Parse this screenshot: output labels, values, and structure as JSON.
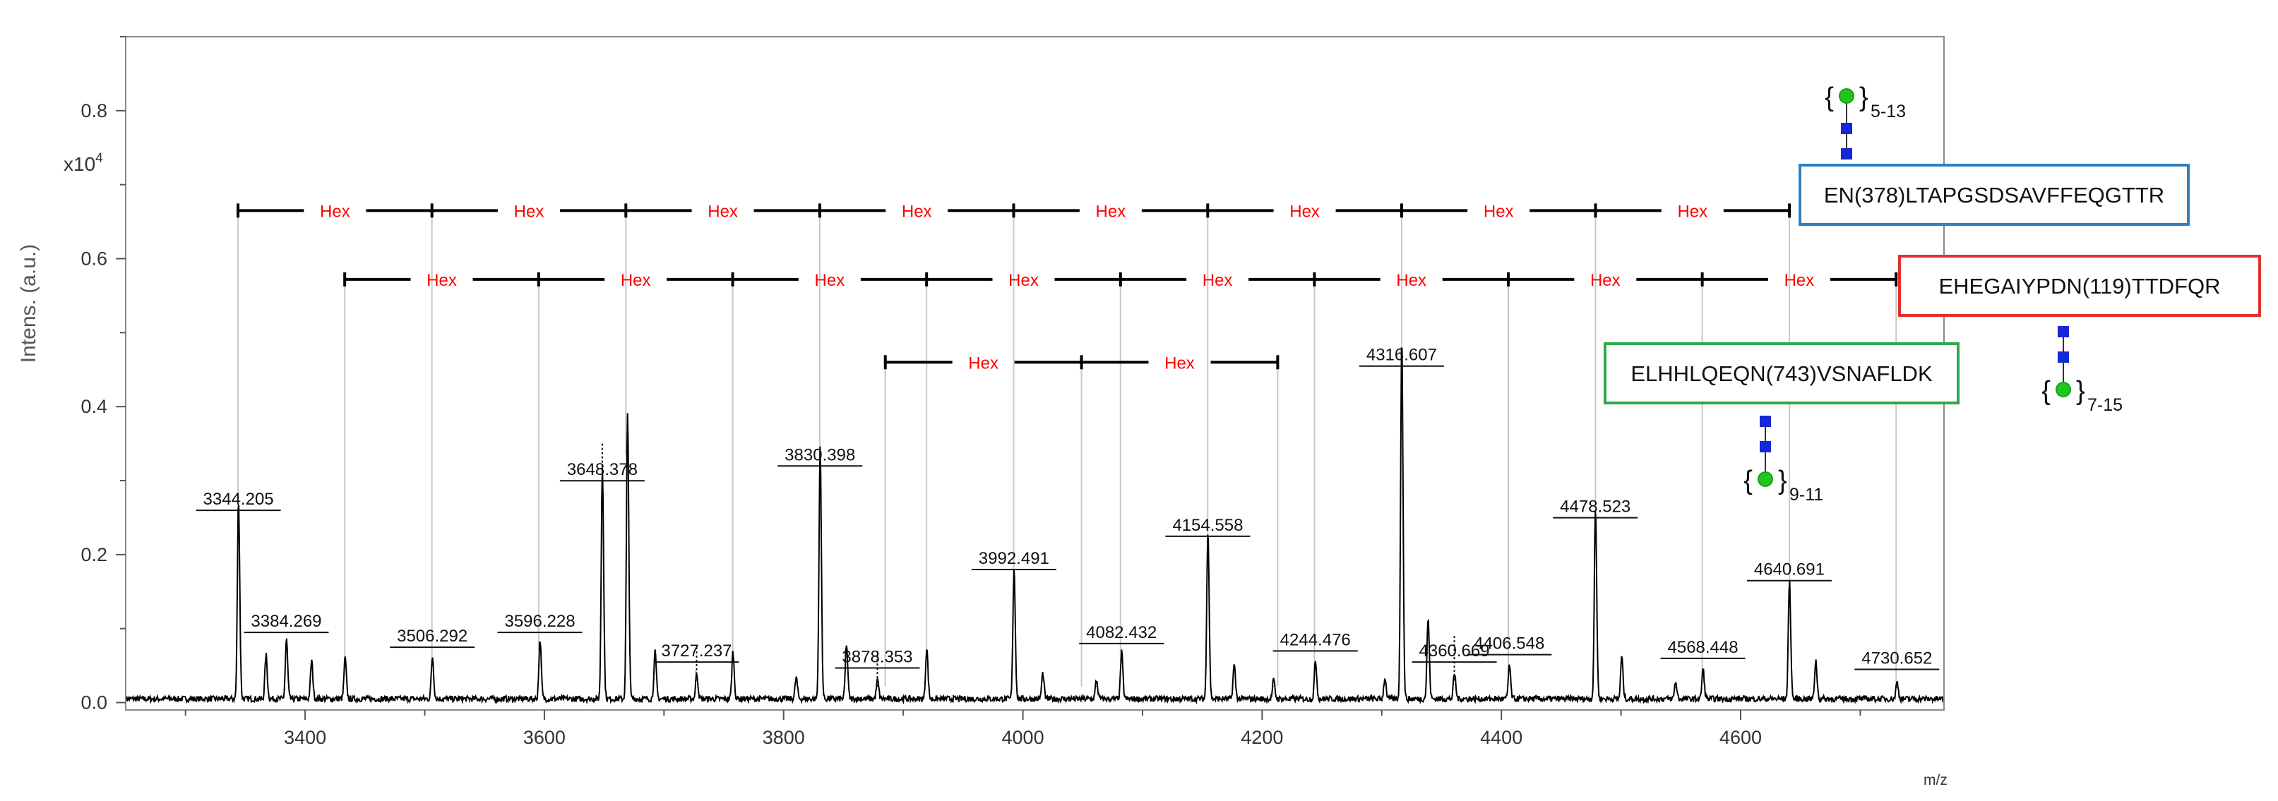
{
  "chart_data": {
    "type": "line",
    "title": "",
    "xlabel": "m/z",
    "ylabel": "Intens. (a.u.)",
    "y_multiplier": "x10",
    "y_multiplier_exp": "4",
    "xlim": [
      3250,
      4770
    ],
    "ylim": [
      -0.01,
      0.9
    ],
    "xticks": [
      3400,
      3600,
      3800,
      4000,
      4200,
      4400,
      4600
    ],
    "yticks": [
      0.0,
      0.2,
      0.4,
      0.6,
      0.8
    ],
    "ytick_labels": [
      "0.0",
      "0.2",
      "0.4",
      "0.6",
      "0.8"
    ],
    "grid": false,
    "series": [
      {
        "baseline": 0.005,
        "peaks": [
          {
            "x": 3344.205,
            "y": 0.235,
            "label": "3344.205"
          },
          {
            "x": 3367.2,
            "y": 0.052
          },
          {
            "x": 3384.269,
            "y": 0.07,
            "label": "3384.269"
          },
          {
            "x": 3405.3,
            "y": 0.045
          },
          {
            "x": 3433.3,
            "y": 0.048
          },
          {
            "x": 3506.292,
            "y": 0.05,
            "label": "3506.292"
          },
          {
            "x": 3596.228,
            "y": 0.07,
            "label": "3596.228"
          },
          {
            "x": 3648.378,
            "y": 0.275,
            "label": "3648.378"
          },
          {
            "x": 3669.4,
            "y": 0.335
          },
          {
            "x": 3692.4,
            "y": 0.055
          },
          {
            "x": 3727.237,
            "y": 0.03,
            "label": "3727.237"
          },
          {
            "x": 3757.5,
            "y": 0.055
          },
          {
            "x": 3810.4,
            "y": 0.025
          },
          {
            "x": 3830.398,
            "y": 0.295,
            "label": "3830.398"
          },
          {
            "x": 3852.4,
            "y": 0.065
          },
          {
            "x": 3878.353,
            "y": 0.022,
            "label": "3878.353"
          },
          {
            "x": 3919.5,
            "y": 0.06
          },
          {
            "x": 3992.491,
            "y": 0.155,
            "label": "3992.491"
          },
          {
            "x": 4016.5,
            "y": 0.03
          },
          {
            "x": 4061.4,
            "y": 0.022
          },
          {
            "x": 4082.432,
            "y": 0.055,
            "label": "4082.432"
          },
          {
            "x": 4154.558,
            "y": 0.2,
            "label": "4154.558"
          },
          {
            "x": 4176.5,
            "y": 0.04
          },
          {
            "x": 4209.5,
            "y": 0.022
          },
          {
            "x": 4244.476,
            "y": 0.045,
            "label": "4244.476"
          },
          {
            "x": 4302.5,
            "y": 0.025
          },
          {
            "x": 4316.607,
            "y": 0.43,
            "label": "4316.607"
          },
          {
            "x": 4338.6,
            "y": 0.095
          },
          {
            "x": 4360.669,
            "y": 0.03,
            "label": "4360.669"
          },
          {
            "x": 4406.548,
            "y": 0.04,
            "label": "4406.548"
          },
          {
            "x": 4478.523,
            "y": 0.225,
            "label": "4478.523"
          },
          {
            "x": 4500.5,
            "y": 0.05
          },
          {
            "x": 4545.5,
            "y": 0.02
          },
          {
            "x": 4568.448,
            "y": 0.035,
            "label": "4568.448"
          },
          {
            "x": 4640.691,
            "y": 0.14,
            "label": "4640.691"
          },
          {
            "x": 4662.7,
            "y": 0.045
          },
          {
            "x": 4730.652,
            "y": 0.02,
            "label": "4730.652"
          }
        ]
      }
    ],
    "annotations": {
      "ladders": [
        {
          "y": 0.665,
          "points": [
            3343.9,
            3506.0,
            3668.1,
            3830.2,
            3992.3,
            4154.5,
            4316.6,
            4478.7,
            4640.8
          ],
          "label": "Hex"
        },
        {
          "y": 0.572,
          "points": [
            3433.1,
            3595.2,
            3757.4,
            3919.5,
            4081.6,
            4243.7,
            4405.8,
            4567.9,
            4730.0
          ],
          "label": "Hex"
        },
        {
          "y": 0.46,
          "points": [
            3885.0,
            4049.0,
            4213.0
          ],
          "label": "Hex"
        }
      ],
      "ladder_links": [
        {
          "ladder": 0,
          "drop_to": [
            0.235,
            0.05,
            0.335,
            0.295,
            0.155,
            0.2,
            0.43,
            0.225,
            0.14
          ]
        },
        {
          "ladder": 1,
          "drop_to": [
            0.048,
            0.07,
            0.055,
            0.06,
            0.055,
            0.045,
            0.04,
            0.035,
            0.02
          ]
        },
        {
          "ladder": 2,
          "drop_to": [
            0.022,
            0.022,
            0.022
          ]
        }
      ],
      "dotted_links": [
        {
          "x": 3648.378,
          "y_top": 0.35,
          "y_bottom": 0.275
        },
        {
          "x": 3727.237,
          "y_top": 0.075,
          "y_bottom": 0.03
        },
        {
          "x": 3878.353,
          "y_top": 0.07,
          "y_bottom": 0.022
        },
        {
          "x": 4360.669,
          "y_top": 0.09,
          "y_bottom": 0.03
        }
      ],
      "glycopeptides": [
        {
          "text": "EN(378)LTAPGSDSAVFFEQGTTR",
          "color": "#2f7fc1",
          "range": "5-13",
          "orientation": "up"
        },
        {
          "text": "EHEGAIYPDN(119)TTDFQR",
          "color": "#e03030",
          "range": "7-15",
          "orientation": "down"
        },
        {
          "text": "ELHHLQEQN(743)VSNAFLDK",
          "color": "#2fa84a",
          "range": "9-11",
          "orientation": "down"
        }
      ]
    },
    "colors": {
      "trace": "#000000",
      "hex_label": "#ff0000",
      "link_line": "#c8c8c8",
      "glcnac": "#1428d8",
      "mannose": "#22c41e",
      "axis": "#555555"
    }
  }
}
